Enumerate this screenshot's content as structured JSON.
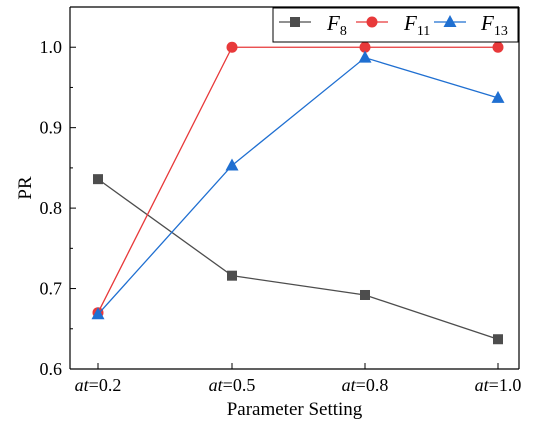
{
  "chart_data": {
    "type": "line",
    "categories": [
      {
        "var": "at",
        "val": "=0.2"
      },
      {
        "var": "at",
        "val": "=0.5"
      },
      {
        "var": "at",
        "val": "=0.8"
      },
      {
        "var": "at",
        "val": "=1.0"
      }
    ],
    "xlabel": "Parameter Setting",
    "ylabel": "PR",
    "ylim": [
      0.6,
      1.05
    ],
    "yticks": [
      "0.6",
      "0.7",
      "0.8",
      "0.9",
      "1.0"
    ],
    "grid": false,
    "legend_position": "top-right",
    "series": [
      {
        "name": {
          "base": "F",
          "sub": "8"
        },
        "values": [
          0.836,
          0.716,
          0.692,
          0.637
        ],
        "color": "#4d4d4d",
        "marker": "square"
      },
      {
        "name": {
          "base": "F",
          "sub": "11"
        },
        "values": [
          0.67,
          1.0,
          1.0,
          1.0
        ],
        "color": "#e8393a",
        "marker": "circle"
      },
      {
        "name": {
          "base": "F",
          "sub": "13"
        },
        "values": [
          0.668,
          0.853,
          0.987,
          0.937
        ],
        "color": "#1f6fd1",
        "marker": "triangle"
      }
    ]
  }
}
